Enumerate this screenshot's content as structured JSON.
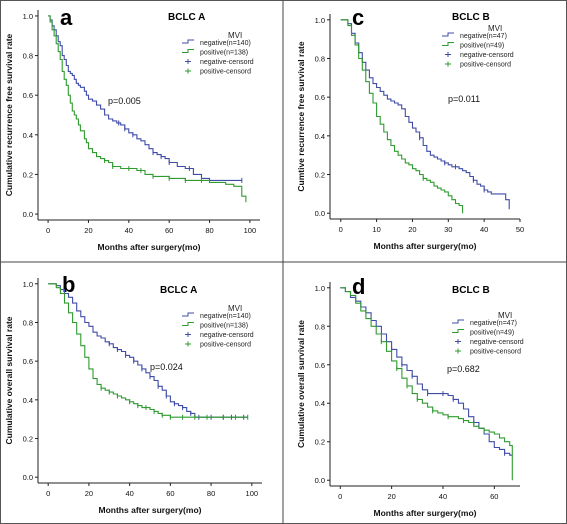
{
  "colors": {
    "negative": "#3f4ca8",
    "positive": "#2f9b2f",
    "axis": "#222222",
    "frame": "#555555",
    "divider": "#444444"
  },
  "legend_rows": [
    "negative-line",
    "positive-line",
    "negative-censor",
    "positive-censor"
  ],
  "chart_data": [
    {
      "id": "a",
      "type": "line",
      "panel_letter": "a",
      "title": "BCLC A",
      "xlabel": "Months after surgery(mo)",
      "ylabel": "Cumulative recurrence free survival rate",
      "xlim": [
        -5,
        105
      ],
      "ylim": [
        -0.03,
        1.03
      ],
      "xticks": [
        0,
        20,
        40,
        60,
        80,
        100
      ],
      "yticks": [
        0.0,
        0.2,
        0.4,
        0.6,
        0.8,
        1.0
      ],
      "legend_title": "MVI",
      "legend_position": "top-right",
      "legend": [
        "negative(n=140)",
        "positive(n=138)",
        "negative-censord",
        "positive-censord"
      ],
      "annotation": "p=0.005",
      "series": [
        {
          "key": "negative",
          "x": [
            0,
            1,
            2,
            3,
            4,
            5,
            6,
            7,
            8,
            9,
            10,
            11,
            12,
            13,
            14,
            15,
            16,
            18,
            19,
            20,
            22,
            24,
            26,
            28,
            30,
            32,
            34,
            36,
            38,
            40,
            42,
            44,
            46,
            48,
            50,
            52,
            54,
            56,
            58,
            60,
            64,
            68,
            72,
            76,
            80,
            96
          ],
          "y": [
            1.0,
            0.98,
            0.95,
            0.93,
            0.9,
            0.87,
            0.85,
            0.8,
            0.78,
            0.75,
            0.72,
            0.71,
            0.7,
            0.68,
            0.66,
            0.65,
            0.64,
            0.62,
            0.6,
            0.58,
            0.57,
            0.55,
            0.53,
            0.5,
            0.48,
            0.47,
            0.46,
            0.45,
            0.43,
            0.41,
            0.4,
            0.38,
            0.37,
            0.35,
            0.33,
            0.31,
            0.3,
            0.29,
            0.28,
            0.26,
            0.24,
            0.23,
            0.2,
            0.18,
            0.17,
            0.17
          ],
          "censored_x": [
            35,
            38,
            42,
            52,
            56,
            60,
            70,
            76,
            96
          ]
        },
        {
          "key": "positive",
          "x": [
            0,
            1,
            2,
            3,
            4,
            5,
            6,
            7,
            8,
            9,
            10,
            11,
            12,
            13,
            14,
            15,
            16,
            18,
            19,
            20,
            22,
            24,
            26,
            28,
            30,
            32,
            34,
            36,
            40,
            44,
            48,
            52,
            56,
            60,
            64,
            68,
            72,
            76,
            80,
            84,
            88,
            92,
            96,
            98
          ],
          "y": [
            1.0,
            0.97,
            0.93,
            0.9,
            0.86,
            0.82,
            0.78,
            0.72,
            0.68,
            0.65,
            0.6,
            0.56,
            0.52,
            0.5,
            0.48,
            0.45,
            0.42,
            0.38,
            0.36,
            0.33,
            0.31,
            0.29,
            0.28,
            0.27,
            0.26,
            0.24,
            0.24,
            0.23,
            0.23,
            0.22,
            0.2,
            0.19,
            0.19,
            0.18,
            0.18,
            0.17,
            0.17,
            0.17,
            0.16,
            0.16,
            0.15,
            0.14,
            0.09,
            0.06
          ],
          "censored_x": [
            28,
            32,
            40,
            46,
            52,
            60,
            68,
            76
          ]
        }
      ]
    },
    {
      "id": "c",
      "type": "line",
      "panel_letter": "c",
      "title": "BCLC  B",
      "xlabel": "Months after surgery(mo)",
      "ylabel": "Cumtive recurrence free survival rate",
      "xlim": [
        -3,
        50
      ],
      "ylim": [
        -0.03,
        1.03
      ],
      "xticks": [
        0,
        10,
        20,
        30,
        40,
        50
      ],
      "yticks": [
        0.0,
        0.2,
        0.4,
        0.6,
        0.8,
        1.0
      ],
      "legend_title": "MVI",
      "legend_position": "top-right",
      "legend": [
        "negative(n=47)",
        "positive(n=49)",
        "negative-censord",
        "positive-censord"
      ],
      "annotation": "p=0.011",
      "series": [
        {
          "key": "negative",
          "x": [
            0,
            1,
            2,
            3,
            4,
            5,
            6,
            7,
            8,
            9,
            10,
            11,
            12,
            13,
            14,
            15,
            16,
            17,
            18,
            19,
            20,
            21,
            22,
            23,
            24,
            25,
            26,
            27,
            28,
            29,
            30,
            31,
            32,
            33,
            34,
            35,
            36,
            37,
            38,
            39,
            40,
            41,
            42,
            44,
            46,
            47
          ],
          "y": [
            1.0,
            1.0,
            0.98,
            0.93,
            0.88,
            0.83,
            0.78,
            0.74,
            0.7,
            0.67,
            0.65,
            0.63,
            0.61,
            0.59,
            0.58,
            0.57,
            0.56,
            0.54,
            0.5,
            0.47,
            0.44,
            0.42,
            0.39,
            0.35,
            0.32,
            0.3,
            0.29,
            0.28,
            0.27,
            0.26,
            0.25,
            0.24,
            0.24,
            0.23,
            0.22,
            0.21,
            0.19,
            0.17,
            0.15,
            0.14,
            0.12,
            0.11,
            0.1,
            0.1,
            0.07,
            0.02
          ],
          "censored_x": [
            22,
            29,
            32,
            37,
            40
          ]
        },
        {
          "key": "positive",
          "x": [
            0,
            1,
            2,
            3,
            4,
            5,
            6,
            7,
            8,
            9,
            10,
            11,
            12,
            13,
            14,
            15,
            16,
            17,
            18,
            19,
            20,
            21,
            22,
            23,
            24,
            25,
            26,
            27,
            28,
            29,
            30,
            31,
            32,
            33,
            34
          ],
          "y": [
            1.0,
            1.0,
            0.97,
            0.92,
            0.87,
            0.8,
            0.74,
            0.68,
            0.62,
            0.57,
            0.5,
            0.46,
            0.42,
            0.38,
            0.35,
            0.32,
            0.3,
            0.28,
            0.26,
            0.25,
            0.23,
            0.22,
            0.2,
            0.18,
            0.17,
            0.16,
            0.14,
            0.13,
            0.12,
            0.11,
            0.09,
            0.07,
            0.05,
            0.04,
            0.0
          ],
          "censored_x": [
            23
          ]
        }
      ]
    },
    {
      "id": "b",
      "type": "line",
      "panel_letter": "b",
      "title": "BCLC  A",
      "xlabel": "Months after surgery(mo)",
      "ylabel": "Cumulative overall survival rate",
      "xlim": [
        -5,
        105
      ],
      "ylim": [
        -0.03,
        1.03
      ],
      "xticks": [
        0,
        20,
        40,
        60,
        80,
        100
      ],
      "yticks": [
        0.0,
        0.2,
        0.4,
        0.6,
        0.8,
        1.0
      ],
      "legend_title": "MVI",
      "legend_position": "top-right",
      "legend": [
        "negative(n=140)",
        "positive(n=138)",
        "negative-censord",
        "positive-censord"
      ],
      "annotation": "p=0.024",
      "series": [
        {
          "key": "negative",
          "x": [
            0,
            2,
            4,
            6,
            8,
            10,
            12,
            14,
            16,
            18,
            20,
            22,
            24,
            26,
            28,
            30,
            32,
            34,
            36,
            38,
            40,
            42,
            44,
            46,
            48,
            50,
            52,
            54,
            56,
            58,
            60,
            62,
            64,
            66,
            68,
            70,
            72,
            80,
            98
          ],
          "y": [
            1.0,
            1.0,
            0.99,
            0.97,
            0.95,
            0.93,
            0.9,
            0.86,
            0.83,
            0.8,
            0.78,
            0.75,
            0.73,
            0.72,
            0.7,
            0.69,
            0.67,
            0.66,
            0.65,
            0.63,
            0.62,
            0.6,
            0.58,
            0.56,
            0.54,
            0.52,
            0.5,
            0.47,
            0.45,
            0.42,
            0.39,
            0.38,
            0.37,
            0.36,
            0.34,
            0.33,
            0.31,
            0.31,
            0.31
          ],
          "censored_x": [
            30,
            34,
            38,
            42,
            46,
            50,
            54,
            58,
            62,
            66,
            70,
            74,
            80,
            86,
            90,
            96
          ]
        },
        {
          "key": "positive",
          "x": [
            0,
            2,
            4,
            6,
            8,
            10,
            12,
            14,
            16,
            18,
            20,
            22,
            24,
            26,
            28,
            30,
            32,
            34,
            36,
            38,
            40,
            42,
            44,
            46,
            48,
            50,
            52,
            54,
            56,
            58,
            60,
            70,
            80,
            90,
            98
          ],
          "y": [
            1.0,
            1.0,
            0.98,
            0.95,
            0.9,
            0.85,
            0.8,
            0.74,
            0.68,
            0.62,
            0.56,
            0.51,
            0.48,
            0.46,
            0.45,
            0.44,
            0.43,
            0.42,
            0.41,
            0.4,
            0.39,
            0.38,
            0.37,
            0.36,
            0.36,
            0.35,
            0.34,
            0.33,
            0.32,
            0.32,
            0.31,
            0.31,
            0.31,
            0.31,
            0.31
          ],
          "censored_x": [
            26,
            30,
            34,
            40,
            44,
            48,
            52,
            56,
            60,
            66,
            72,
            78,
            86,
            92,
            98
          ]
        }
      ]
    },
    {
      "id": "d",
      "type": "line",
      "panel_letter": "d",
      "title": "BCLC  B",
      "xlabel": "Months after surgery(mo)",
      "ylabel": "Cumulative overall survival rate",
      "xlim": [
        -4,
        70
      ],
      "ylim": [
        -0.03,
        1.03
      ],
      "xticks": [
        0,
        20,
        40,
        60
      ],
      "yticks": [
        0.0,
        0.2,
        0.4,
        0.6,
        0.8,
        1.0
      ],
      "legend_title": "MVI",
      "legend_position": "top-right",
      "legend": [
        "negative(n=47)",
        "positive(n=49)",
        "negative-censord",
        "positive-censord"
      ],
      "annotation": "p=0.682",
      "series": [
        {
          "key": "negative",
          "x": [
            0,
            2,
            4,
            6,
            8,
            10,
            12,
            14,
            16,
            18,
            20,
            22,
            24,
            26,
            28,
            30,
            32,
            34,
            36,
            38,
            40,
            42,
            44,
            46,
            48,
            50,
            52,
            54,
            56,
            58,
            60,
            62,
            64,
            66,
            67
          ],
          "y": [
            1.0,
            0.98,
            0.95,
            0.93,
            0.9,
            0.87,
            0.83,
            0.8,
            0.76,
            0.72,
            0.68,
            0.64,
            0.6,
            0.57,
            0.54,
            0.5,
            0.47,
            0.45,
            0.45,
            0.45,
            0.45,
            0.44,
            0.42,
            0.4,
            0.37,
            0.33,
            0.3,
            0.27,
            0.24,
            0.2,
            0.17,
            0.16,
            0.14,
            0.13,
            0.13
          ],
          "censored_x": [
            20,
            24,
            28,
            34,
            40,
            44,
            52,
            64
          ]
        },
        {
          "key": "positive",
          "x": [
            0,
            2,
            4,
            6,
            8,
            10,
            12,
            14,
            16,
            18,
            20,
            22,
            24,
            26,
            28,
            30,
            32,
            34,
            36,
            38,
            40,
            42,
            44,
            46,
            48,
            50,
            52,
            54,
            56,
            58,
            60,
            62,
            64,
            66,
            67
          ],
          "y": [
            1.0,
            0.98,
            0.96,
            0.92,
            0.88,
            0.84,
            0.8,
            0.76,
            0.72,
            0.67,
            0.62,
            0.58,
            0.53,
            0.49,
            0.45,
            0.42,
            0.4,
            0.38,
            0.36,
            0.35,
            0.34,
            0.33,
            0.33,
            0.32,
            0.31,
            0.3,
            0.28,
            0.27,
            0.26,
            0.25,
            0.24,
            0.22,
            0.2,
            0.18,
            0.0
          ],
          "censored_x": [
            16,
            22,
            26,
            30,
            36,
            42,
            48,
            56
          ]
        }
      ]
    }
  ]
}
